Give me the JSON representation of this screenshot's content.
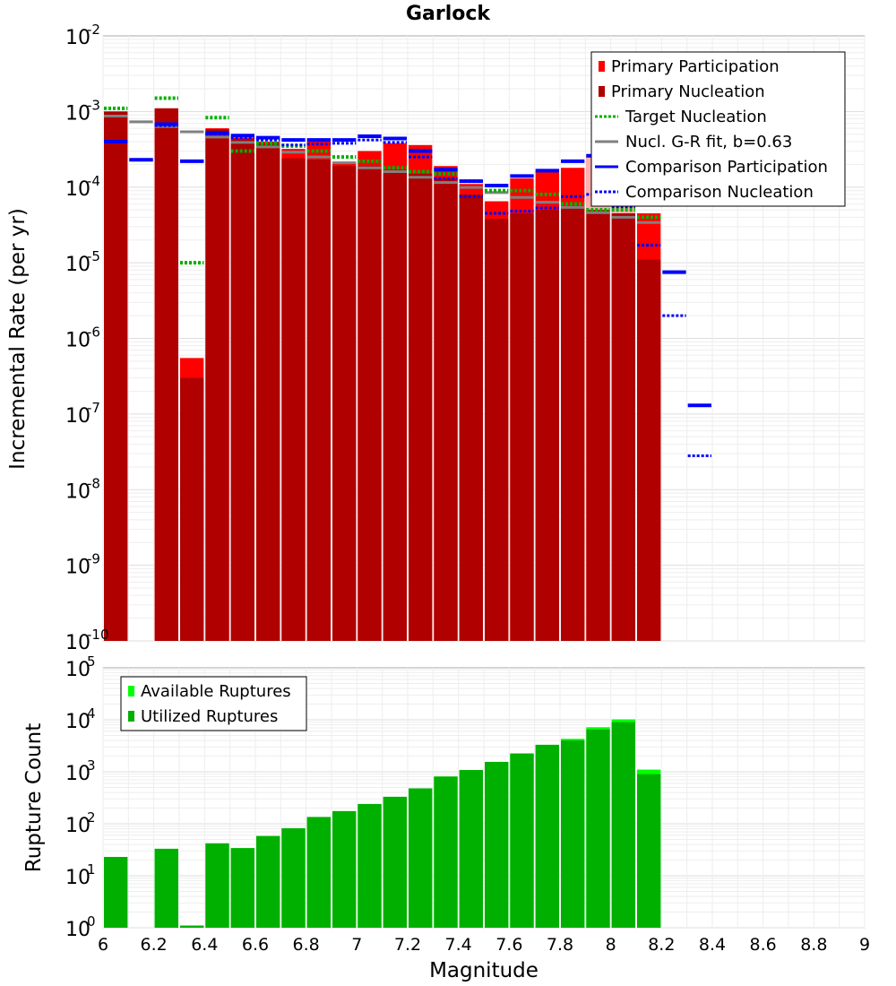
{
  "chart_data": [
    {
      "type": "bar",
      "title": "Garlock",
      "ylabel": "Incremental Rate (per yr)",
      "xlabel": "",
      "y_scale": "log",
      "ylim": [
        1e-10,
        0.01
      ],
      "xlim": [
        6,
        9
      ],
      "bin_width": 0.1,
      "y_ticks": [
        "10",
        "10",
        "10",
        "10",
        "10",
        "10",
        "10",
        "10",
        "10"
      ],
      "y_tick_exponents": [
        "-10",
        "-9",
        "-8",
        "-7",
        "-6",
        "-5",
        "-4",
        "-3",
        "-2"
      ],
      "grid": true,
      "legend_position": "top-right",
      "legend": [
        {
          "label": "Primary Participation",
          "color": "#ff0000",
          "style": "bar"
        },
        {
          "label": "Primary Nucleation",
          "color": "#b00000",
          "style": "bar"
        },
        {
          "label": "Target Nucleation",
          "color": "#00b000",
          "style": "dotted"
        },
        {
          "label": "Nucl. G-R fit, b=0.63",
          "color": "#808080",
          "style": "solid"
        },
        {
          "label": "Comparison Participation",
          "color": "#0000ff",
          "style": "solid"
        },
        {
          "label": "Comparison Nucleation",
          "color": "#0000ff",
          "style": "dotted"
        }
      ],
      "series": [
        {
          "name": "Primary Participation",
          "x": [
            6.05,
            6.25,
            6.35,
            6.45,
            6.55,
            6.65,
            6.75,
            6.85,
            6.95,
            7.05,
            7.15,
            7.25,
            7.35,
            7.45,
            7.55,
            7.65,
            7.75,
            7.85,
            7.95,
            8.05,
            8.15
          ],
          "values": [
            0.001,
            0.0011,
            5.5e-07,
            0.0006,
            0.00045,
            0.0004,
            0.00032,
            0.0004,
            0.00021,
            0.0003,
            0.00038,
            0.00036,
            0.00019,
            0.00011,
            6.5e-05,
            0.00013,
            0.00016,
            0.00018,
            0.00027,
            0.00018,
            4.5e-05
          ]
        },
        {
          "name": "Primary Nucleation",
          "x": [
            6.05,
            6.25,
            6.35,
            6.45,
            6.55,
            6.65,
            6.75,
            6.85,
            6.95,
            7.05,
            7.15,
            7.25,
            7.35,
            7.45,
            7.55,
            7.65,
            7.75,
            7.85,
            7.95,
            8.05,
            8.15
          ],
          "values": [
            0.001,
            0.0011,
            3e-07,
            0.00058,
            0.00043,
            0.00038,
            0.00024,
            0.00023,
            0.00019,
            0.00019,
            0.00017,
            0.00015,
            0.00013,
            8e-05,
            3.8e-05,
            4.5e-05,
            5e-05,
            5.5e-05,
            5e-05,
            4.5e-05,
            1.1e-05
          ]
        },
        {
          "name": "Target Nucleation",
          "x": [
            6.05,
            6.25,
            6.35,
            6.45,
            6.55,
            6.65,
            6.75,
            6.85,
            6.95,
            7.05,
            7.15,
            7.25,
            7.35,
            7.45,
            7.55,
            7.65,
            7.75,
            7.85,
            7.95,
            8.05,
            8.15
          ],
          "values": [
            0.0011,
            0.0015,
            1e-05,
            0.00083,
            0.0003,
            0.00038,
            0.00035,
            0.0003,
            0.00025,
            0.00022,
            0.00018,
            0.00016,
            0.00015,
            0.00012,
            9e-05,
            9e-05,
            8e-05,
            6e-05,
            5e-05,
            5e-05,
            4e-05
          ]
        },
        {
          "name": "Nucl. G-R fit, b=0.63",
          "x": [
            6.05,
            6.15,
            6.25,
            6.35,
            6.45,
            6.55,
            6.65,
            6.75,
            6.85,
            6.95,
            7.05,
            7.15,
            7.25,
            7.35,
            7.45,
            7.55,
            7.65,
            7.75,
            7.85,
            7.95,
            8.05,
            8.15
          ],
          "values": [
            0.00087,
            0.00073,
            0.00063,
            0.00054,
            0.00046,
            0.00039,
            0.00034,
            0.00029,
            0.00025,
            0.00021,
            0.00018,
            0.00016,
            0.000135,
            0.000115,
            9.9e-05,
            8.5e-05,
            7.3e-05,
            6.3e-05,
            5.4e-05,
            4.6e-05,
            4e-05,
            3.4e-05
          ]
        },
        {
          "name": "Comparison Participation",
          "x": [
            6.05,
            6.15,
            6.25,
            6.35,
            6.45,
            6.55,
            6.65,
            6.75,
            6.85,
            6.95,
            7.05,
            7.15,
            7.25,
            7.35,
            7.45,
            7.55,
            7.65,
            7.75,
            7.85,
            7.95,
            8.05,
            8.15,
            8.25,
            8.35
          ],
          "values": [
            0.0004,
            0.00023,
            0.00068,
            0.00022,
            0.00052,
            0.00048,
            0.00045,
            0.00042,
            0.00042,
            0.00042,
            0.00047,
            0.00044,
            0.0003,
            0.00017,
            0.00012,
            0.000105,
            0.00014,
            0.000165,
            0.00022,
            0.00026,
            0.00018,
            6e-05,
            7.5e-06,
            1.3e-07
          ]
        },
        {
          "name": "Comparison Nucleation",
          "x": [
            6.05,
            6.15,
            6.25,
            6.35,
            6.45,
            6.55,
            6.65,
            6.75,
            6.85,
            6.95,
            7.05,
            7.15,
            7.25,
            7.35,
            7.45,
            7.55,
            7.65,
            7.75,
            7.85,
            7.95,
            8.05,
            8.15,
            8.25,
            8.35
          ],
          "values": [
            0.0004,
            0.00023,
            0.00065,
            0.00022,
            0.0005,
            0.00045,
            0.00042,
            0.00036,
            0.00037,
            0.00038,
            0.00042,
            0.00039,
            0.00025,
            0.00013,
            7.5e-05,
            4.5e-05,
            4.8e-05,
            5.3e-05,
            7.5e-05,
            8e-05,
            5.5e-05,
            1.7e-05,
            2e-06,
            2.8e-08
          ]
        }
      ]
    },
    {
      "type": "bar",
      "title": "",
      "ylabel": "Rupture Count",
      "xlabel": "Magnitude",
      "y_scale": "log",
      "ylim": [
        1,
        100000
      ],
      "xlim": [
        6,
        9
      ],
      "bin_width": 0.1,
      "y_ticks": [
        "10",
        "10",
        "10",
        "10",
        "10",
        "10"
      ],
      "y_tick_exponents": [
        "0",
        "1",
        "2",
        "3",
        "4",
        "5"
      ],
      "x_ticks": [
        "6",
        "6.2",
        "6.4",
        "6.6",
        "6.8",
        "7",
        "7.2",
        "7.4",
        "7.6",
        "7.8",
        "8",
        "8.2",
        "8.4",
        "8.6",
        "8.8",
        "9"
      ],
      "grid": true,
      "legend_position": "top-left",
      "legend": [
        {
          "label": "Available Ruptures",
          "color": "#00ff00",
          "style": "bar"
        },
        {
          "label": "Utilized Ruptures",
          "color": "#00b000",
          "style": "bar"
        }
      ],
      "series": [
        {
          "name": "Available Ruptures",
          "x": [
            6.05,
            6.25,
            6.35,
            6.45,
            6.55,
            6.65,
            6.75,
            6.85,
            6.95,
            7.05,
            7.15,
            7.25,
            7.35,
            7.45,
            7.55,
            7.65,
            7.75,
            7.85,
            7.95,
            8.05,
            8.15
          ],
          "values": [
            23,
            33,
            1.1,
            42,
            34,
            58,
            82,
            135,
            175,
            240,
            330,
            480,
            810,
            1080,
            1550,
            2250,
            3300,
            4300,
            7200,
            10200,
            1100
          ]
        },
        {
          "name": "Utilized Ruptures",
          "x": [
            6.05,
            6.25,
            6.35,
            6.45,
            6.55,
            6.65,
            6.75,
            6.85,
            6.95,
            7.05,
            7.15,
            7.25,
            7.35,
            7.45,
            7.55,
            7.65,
            7.75,
            7.85,
            7.95,
            8.05,
            8.15
          ],
          "values": [
            23,
            33,
            1.1,
            42,
            34,
            58,
            82,
            135,
            175,
            240,
            330,
            480,
            810,
            1080,
            1550,
            2250,
            3300,
            4000,
            6500,
            9000,
            900
          ]
        }
      ]
    }
  ]
}
